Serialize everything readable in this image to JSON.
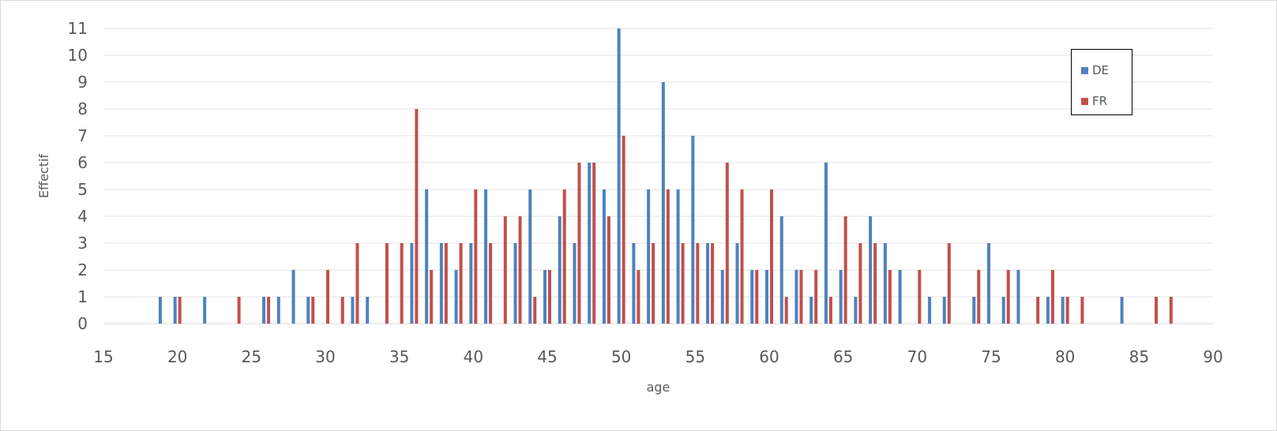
{
  "chart_data": {
    "type": "bar",
    "title": "",
    "xlabel": "age",
    "ylabel": "Effectif",
    "xlim": [
      15,
      90
    ],
    "ylim": [
      0,
      11
    ],
    "xticks": [
      15,
      20,
      25,
      30,
      35,
      40,
      45,
      50,
      55,
      60,
      65,
      70,
      75,
      80,
      85,
      90
    ],
    "yticks": [
      0,
      1,
      2,
      3,
      4,
      5,
      6,
      7,
      8,
      9,
      10,
      11
    ],
    "grid": "horizontal",
    "legend_position": "top-right",
    "series": [
      {
        "name": "DE",
        "color": "#4f81bd",
        "points": [
          [
            19,
            1
          ],
          [
            20,
            1
          ],
          [
            22,
            1
          ],
          [
            26,
            1
          ],
          [
            27,
            1
          ],
          [
            28,
            2
          ],
          [
            29,
            1
          ],
          [
            32,
            1
          ],
          [
            33,
            1
          ],
          [
            36,
            3
          ],
          [
            37,
            5
          ],
          [
            38,
            3
          ],
          [
            39,
            2
          ],
          [
            40,
            3
          ],
          [
            41,
            5
          ],
          [
            43,
            3
          ],
          [
            44,
            5
          ],
          [
            45,
            2
          ],
          [
            46,
            4
          ],
          [
            47,
            3
          ],
          [
            48,
            6
          ],
          [
            49,
            5
          ],
          [
            50,
            11
          ],
          [
            51,
            3
          ],
          [
            52,
            5
          ],
          [
            53,
            9
          ],
          [
            54,
            5
          ],
          [
            55,
            7
          ],
          [
            56,
            3
          ],
          [
            57,
            2
          ],
          [
            58,
            3
          ],
          [
            59,
            2
          ],
          [
            60,
            2
          ],
          [
            61,
            4
          ],
          [
            62,
            2
          ],
          [
            63,
            1
          ],
          [
            64,
            6
          ],
          [
            65,
            2
          ],
          [
            66,
            1
          ],
          [
            67,
            4
          ],
          [
            68,
            3
          ],
          [
            69,
            2
          ],
          [
            71,
            1
          ],
          [
            72,
            1
          ],
          [
            74,
            1
          ],
          [
            75,
            3
          ],
          [
            76,
            1
          ],
          [
            77,
            2
          ],
          [
            79,
            1
          ],
          [
            80,
            1
          ],
          [
            84,
            1
          ]
        ]
      },
      {
        "name": "FR",
        "color": "#c0504d",
        "points": [
          [
            20,
            1
          ],
          [
            24,
            1
          ],
          [
            26,
            1
          ],
          [
            29,
            1
          ],
          [
            30,
            2
          ],
          [
            31,
            1
          ],
          [
            32,
            3
          ],
          [
            34,
            3
          ],
          [
            35,
            3
          ],
          [
            36,
            8
          ],
          [
            37,
            2
          ],
          [
            38,
            3
          ],
          [
            39,
            3
          ],
          [
            40,
            5
          ],
          [
            41,
            3
          ],
          [
            42,
            4
          ],
          [
            43,
            4
          ],
          [
            44,
            1
          ],
          [
            45,
            2
          ],
          [
            46,
            5
          ],
          [
            47,
            6
          ],
          [
            48,
            6
          ],
          [
            49,
            4
          ],
          [
            50,
            7
          ],
          [
            51,
            2
          ],
          [
            52,
            3
          ],
          [
            53,
            5
          ],
          [
            54,
            3
          ],
          [
            55,
            3
          ],
          [
            56,
            3
          ],
          [
            57,
            6
          ],
          [
            58,
            5
          ],
          [
            59,
            2
          ],
          [
            60,
            5
          ],
          [
            61,
            1
          ],
          [
            62,
            2
          ],
          [
            63,
            2
          ],
          [
            64,
            1
          ],
          [
            65,
            4
          ],
          [
            66,
            3
          ],
          [
            67,
            3
          ],
          [
            68,
            2
          ],
          [
            70,
            2
          ],
          [
            72,
            3
          ],
          [
            74,
            2
          ],
          [
            76,
            2
          ],
          [
            78,
            1
          ],
          [
            79,
            2
          ],
          [
            80,
            1
          ],
          [
            81,
            1
          ],
          [
            86,
            1
          ],
          [
            87,
            1
          ]
        ]
      }
    ]
  }
}
